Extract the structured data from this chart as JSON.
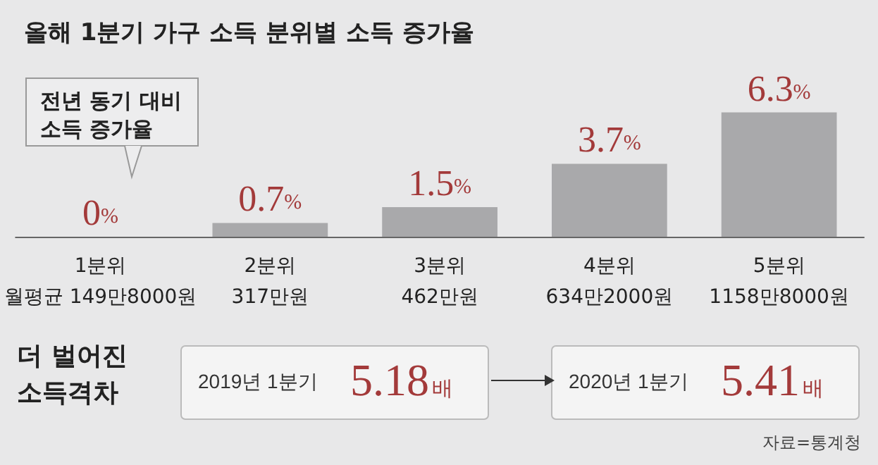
{
  "chart_data": {
    "type": "bar",
    "title": "올해 1분기 가구 소득 분위별 소득 증가율",
    "categories": [
      "1분위\n월평균 149만8000원",
      "2분위\n317만원",
      "3분위\n462만원",
      "4분위\n634만2000원",
      "5분위\n1158만8000원"
    ],
    "values": [
      0,
      0.7,
      1.5,
      3.7,
      6.3
    ],
    "value_labels": [
      "0%",
      "0.7%",
      "1.5%",
      "3.7%",
      "6.3%"
    ],
    "color": "#a9a9ab",
    "annotations": [
      "전년 동기 대비\n소득 증가율",
      "더 벌어진\n소득격차",
      "2019년 1분기 5.18배",
      "2020년 1분기 5.41배",
      "자료=통계청"
    ]
  }
}
